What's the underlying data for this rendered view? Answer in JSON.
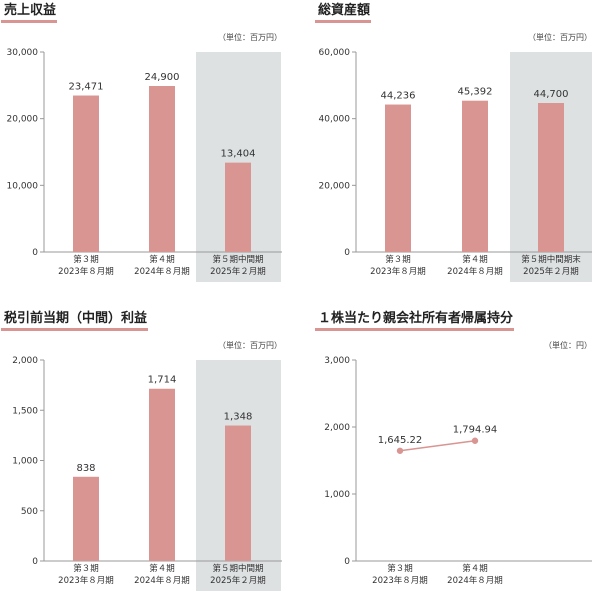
{
  "colors": {
    "bar": "#d99591",
    "line": "#d99591",
    "highlight": "#dde1e2",
    "underline": "#d99591",
    "axis": "#999999"
  },
  "chart_data": [
    {
      "id": "sales",
      "type": "bar",
      "title": "売上収益",
      "unit": "（単位：百万円）",
      "categories": [
        [
          "第３期",
          "2023年８月期"
        ],
        [
          "第４期",
          "2024年８月期"
        ],
        [
          "第５期中間期",
          "2025年２月期"
        ]
      ],
      "values": [
        23471,
        24900,
        13404
      ],
      "value_labels": [
        "23,471",
        "24,900",
        "13,404"
      ],
      "ylim": [
        0,
        30000
      ],
      "yticks": [
        0,
        10000,
        20000,
        30000
      ],
      "ytick_labels": [
        "0",
        "10,000",
        "20,000",
        "30,000"
      ],
      "highlight_index": 2
    },
    {
      "id": "assets",
      "type": "bar",
      "title": "総資産額",
      "unit": "（単位：百万円）",
      "categories": [
        [
          "第３期",
          "2023年８月期"
        ],
        [
          "第４期",
          "2024年８月期"
        ],
        [
          "第５期中間期末",
          "2025年２月期"
        ]
      ],
      "values": [
        44236,
        45392,
        44700
      ],
      "value_labels": [
        "44,236",
        "45,392",
        "44,700"
      ],
      "ylim": [
        0,
        60000
      ],
      "yticks": [
        0,
        20000,
        40000,
        60000
      ],
      "ytick_labels": [
        "0",
        "20,000",
        "40,000",
        "60,000"
      ],
      "highlight_index": 2
    },
    {
      "id": "profit",
      "type": "bar",
      "title": "税引前当期（中間）利益",
      "unit": "（単位：百万円）",
      "categories": [
        [
          "第３期",
          "2023年８月期"
        ],
        [
          "第４期",
          "2024年８月期"
        ],
        [
          "第５期中間期",
          "2025年２月期"
        ]
      ],
      "values": [
        838,
        1714,
        1348
      ],
      "value_labels": [
        "838",
        "1,714",
        "1,348"
      ],
      "ylim": [
        0,
        2000
      ],
      "yticks": [
        0,
        500,
        1000,
        1500,
        2000
      ],
      "ytick_labels": [
        "0",
        "500",
        "1,000",
        "1,500",
        "2,000"
      ],
      "highlight_index": 2
    },
    {
      "id": "equity",
      "type": "line",
      "title": "１株当たり親会社所有者帰属持分",
      "unit": "（単位：円）",
      "categories": [
        [
          "第３期",
          "2023年８月期"
        ],
        [
          "第４期",
          "2024年８月期"
        ]
      ],
      "values": [
        1645.22,
        1794.94
      ],
      "value_labels": [
        "1,645.22",
        "1,794.94"
      ],
      "ylim": [
        0,
        3000
      ],
      "yticks": [
        0,
        1000,
        2000,
        3000
      ],
      "ytick_labels": [
        "0",
        "1,000",
        "2,000",
        "3,000"
      ],
      "highlight_index": null
    }
  ]
}
